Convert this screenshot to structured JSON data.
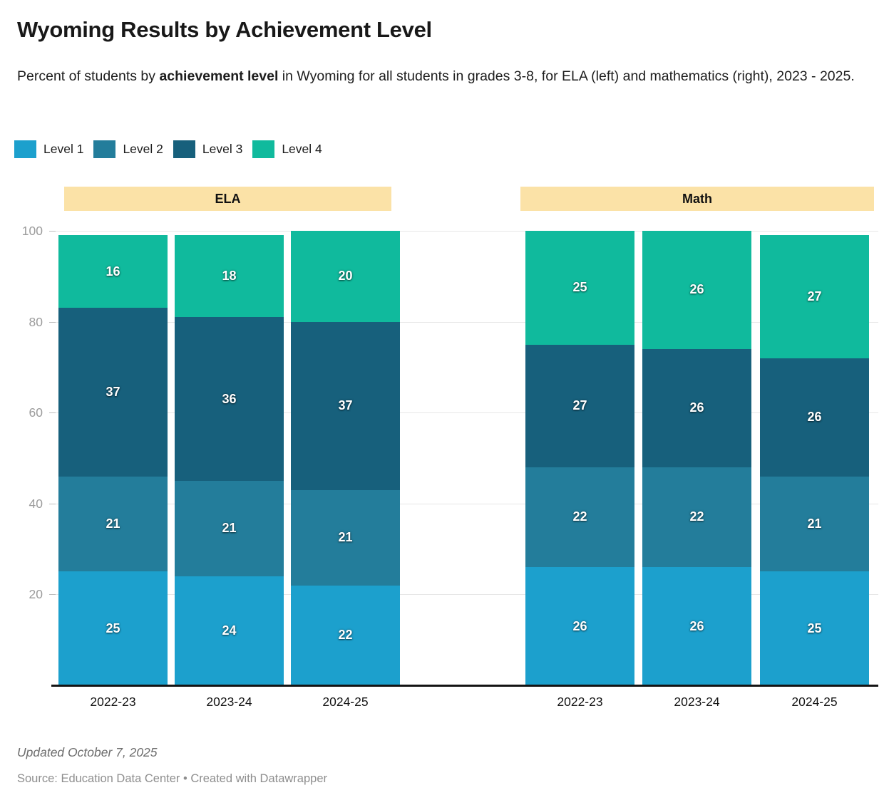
{
  "header": {
    "title": "Wyoming Results by Achievement Level",
    "subtitle_prefix": "Percent of students by ",
    "subtitle_bold": "achievement level",
    "subtitle_suffix": " in Wyoming for all students in grades 3-8, for ELA (left) and mathematics (right), 2023 - 2025."
  },
  "legend": {
    "items": [
      {
        "label": "Level 1",
        "color": "#1CA0CD"
      },
      {
        "label": "Level 2",
        "color": "#237D9B"
      },
      {
        "label": "Level 3",
        "color": "#17607C"
      },
      {
        "label": "Level 4",
        "color": "#10BA9D"
      }
    ]
  },
  "chart_data": {
    "type": "bar",
    "stacked": true,
    "title": "Wyoming Results by Achievement Level",
    "unit": "percent of students",
    "ylim": [
      0,
      100
    ],
    "yticks": [
      20,
      40,
      60,
      80,
      100
    ],
    "grid": true,
    "legend_position": "top-left",
    "group_band_color": "#FBE2A7",
    "series_colors": [
      "#1CA0CD",
      "#237D9B",
      "#17607C",
      "#10BA9D"
    ],
    "groups": [
      {
        "label": "ELA",
        "categories": [
          "2022-23",
          "2023-24",
          "2024-25"
        ],
        "series": [
          {
            "name": "Level 1",
            "values": [
              25,
              24,
              22
            ]
          },
          {
            "name": "Level 2",
            "values": [
              21,
              21,
              21
            ]
          },
          {
            "name": "Level 3",
            "values": [
              37,
              36,
              37
            ]
          },
          {
            "name": "Level 4",
            "values": [
              16,
              18,
              20
            ]
          }
        ]
      },
      {
        "label": "Math",
        "categories": [
          "2022-23",
          "2023-24",
          "2024-25"
        ],
        "series": [
          {
            "name": "Level 1",
            "values": [
              26,
              26,
              25
            ]
          },
          {
            "name": "Level 2",
            "values": [
              22,
              22,
              21
            ]
          },
          {
            "name": "Level 3",
            "values": [
              27,
              26,
              26
            ]
          },
          {
            "name": "Level 4",
            "values": [
              25,
              26,
              27
            ]
          }
        ]
      }
    ]
  },
  "footer": {
    "updated": "Updated October 7, 2025",
    "source": "Source: Education Data Center • Created with Datawrapper"
  }
}
